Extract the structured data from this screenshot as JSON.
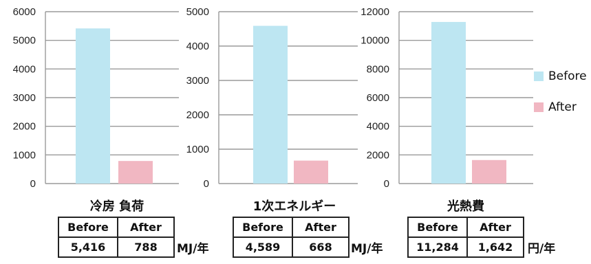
{
  "colors": {
    "before": "#bde6f2",
    "after": "#f1b7c2",
    "grid": "#9a9a9a"
  },
  "legend": [
    {
      "label": "Before",
      "color": "#bde6f2"
    },
    {
      "label": "After",
      "color": "#f1b7c2"
    }
  ],
  "chart_data": [
    {
      "type": "bar",
      "categories": [
        "Before",
        "After"
      ],
      "values": [
        5416,
        788
      ],
      "ylim": [
        0,
        6000
      ],
      "yticks": [
        "6000",
        "5000",
        "4000",
        "3000",
        "2000",
        "1000",
        "0"
      ],
      "title": "冷房 負荷",
      "xlabel": "",
      "ylabel": "",
      "grid": true,
      "table": {
        "headers": [
          "Before",
          "After"
        ],
        "values": [
          "5,416",
          "788"
        ]
      },
      "unit": "MJ/年"
    },
    {
      "type": "bar",
      "categories": [
        "Before",
        "After"
      ],
      "values": [
        4589,
        668
      ],
      "ylim": [
        0,
        5000
      ],
      "yticks": [
        "5000",
        "4000",
        "3000",
        "2000",
        "1000",
        "0"
      ],
      "title": "1次エネルギー",
      "xlabel": "",
      "ylabel": "",
      "grid": true,
      "table": {
        "headers": [
          "Before",
          "After"
        ],
        "values": [
          "4,589",
          "668"
        ]
      },
      "unit": "MJ/年"
    },
    {
      "type": "bar",
      "categories": [
        "Before",
        "After"
      ],
      "values": [
        11284,
        1642
      ],
      "ylim": [
        0,
        12000
      ],
      "yticks": [
        "12000",
        "10000",
        "8000",
        "6000",
        "4000",
        "2000",
        "0"
      ],
      "title": "光熱費",
      "xlabel": "",
      "ylabel": "",
      "grid": true,
      "table": {
        "headers": [
          "Before",
          "After"
        ],
        "values": [
          "11,284",
          "1,642"
        ]
      },
      "unit": "円/年"
    }
  ]
}
